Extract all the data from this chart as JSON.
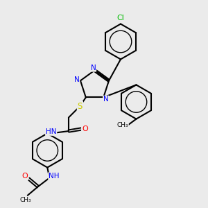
{
  "background_color": "#ebebeb",
  "bond_color": "#000000",
  "atom_colors": {
    "N": "#0000ff",
    "O": "#ff0000",
    "S": "#cccc00",
    "Cl": "#00bb00",
    "C": "#000000",
    "H": "#888888"
  },
  "figsize": [
    3.0,
    3.0
  ],
  "dpi": 100,
  "xlim": [
    0,
    10
  ],
  "ylim": [
    0,
    10
  ]
}
